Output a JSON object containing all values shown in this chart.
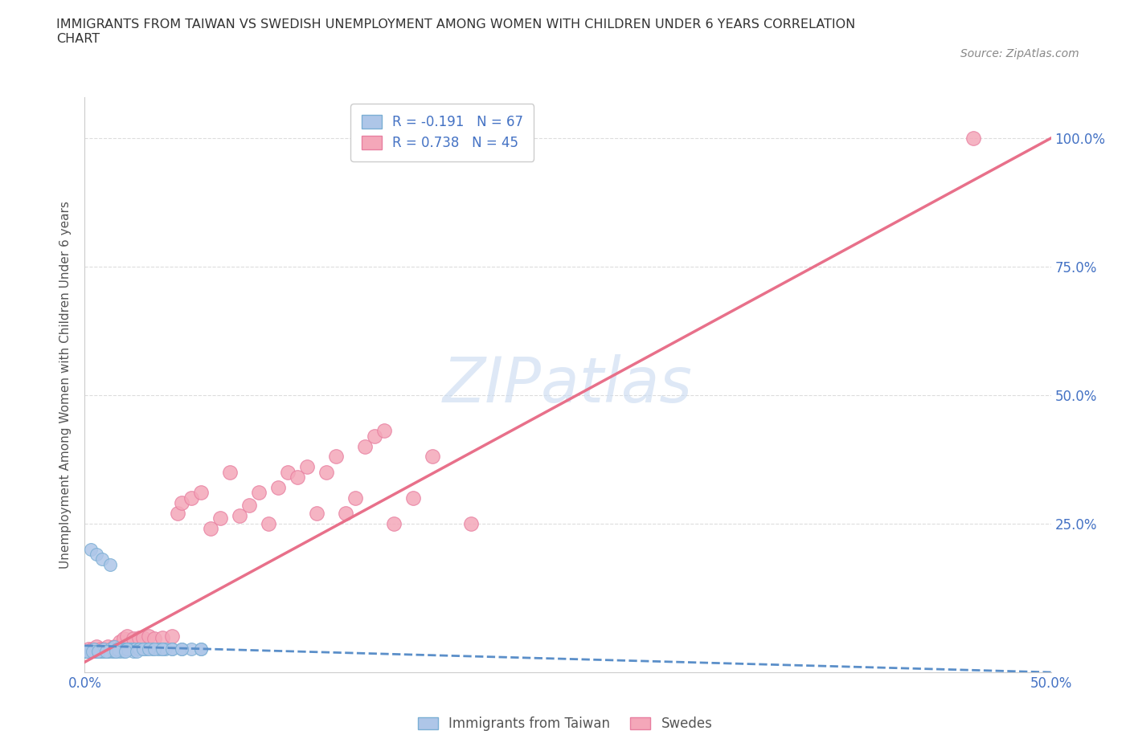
{
  "title": "IMMIGRANTS FROM TAIWAN VS SWEDISH UNEMPLOYMENT AMONG WOMEN WITH CHILDREN UNDER 6 YEARS CORRELATION\nCHART",
  "source": "Source: ZipAtlas.com",
  "ylabel_left": "Unemployment Among Women with Children Under 6 years",
  "x_min": 0.0,
  "x_max": 0.5,
  "y_min": -0.04,
  "y_max": 1.08,
  "grid_color": "#dddddd",
  "background_color": "#ffffff",
  "taiwan_color": "#aec6e8",
  "taiwan_edge_color": "#7bafd4",
  "swedes_color": "#f4a7b9",
  "swedes_edge_color": "#e87fa0",
  "taiwan_line_color": "#5b8fc9",
  "swedes_line_color": "#e8708a",
  "legend_taiwan_label": "R = -0.191   N = 67",
  "legend_swedes_label": "R = 0.738   N = 45",
  "legend_taiwan_color": "#aec6e8",
  "legend_swedes_color": "#f4a7b9",
  "watermark": "ZIPatlas",
  "watermark_color": "#c8daf0",
  "taiwan_scatter_x": [
    0.0,
    0.001,
    0.002,
    0.003,
    0.004,
    0.005,
    0.006,
    0.007,
    0.008,
    0.009,
    0.01,
    0.011,
    0.012,
    0.013,
    0.014,
    0.015,
    0.016,
    0.017,
    0.018,
    0.019,
    0.02,
    0.021,
    0.022,
    0.023,
    0.024,
    0.025,
    0.026,
    0.028,
    0.03,
    0.032,
    0.035,
    0.038,
    0.04,
    0.042,
    0.045,
    0.05,
    0.055,
    0.06,
    0.005,
    0.008,
    0.01,
    0.012,
    0.015,
    0.018,
    0.02,
    0.025,
    0.003,
    0.006,
    0.009,
    0.013,
    0.017,
    0.022,
    0.028,
    0.001,
    0.004,
    0.007,
    0.011,
    0.016,
    0.021,
    0.027,
    0.03,
    0.033,
    0.036,
    0.04,
    0.045,
    0.05,
    0.06
  ],
  "taiwan_scatter_y": [
    0.0,
    0.0,
    0.0,
    0.0,
    0.0,
    0.005,
    0.0,
    0.0,
    0.0,
    0.0,
    0.005,
    0.0,
    0.0,
    0.005,
    0.0,
    0.01,
    0.0,
    0.005,
    0.005,
    0.005,
    0.005,
    0.005,
    0.005,
    0.005,
    0.005,
    0.005,
    0.005,
    0.005,
    0.005,
    0.005,
    0.005,
    0.005,
    0.005,
    0.005,
    0.005,
    0.005,
    0.005,
    0.005,
    0.0,
    0.0,
    0.0,
    0.0,
    0.0,
    0.0,
    0.0,
    0.0,
    0.2,
    0.19,
    0.18,
    0.17,
    0.005,
    0.005,
    0.005,
    0.0,
    0.0,
    0.0,
    0.0,
    0.0,
    0.0,
    0.0,
    0.005,
    0.005,
    0.005,
    0.005,
    0.005,
    0.005,
    0.005
  ],
  "swedes_scatter_x": [
    0.002,
    0.004,
    0.006,
    0.008,
    0.01,
    0.012,
    0.015,
    0.018,
    0.02,
    0.022,
    0.025,
    0.028,
    0.03,
    0.033,
    0.036,
    0.04,
    0.045,
    0.048,
    0.05,
    0.055,
    0.06,
    0.065,
    0.07,
    0.075,
    0.08,
    0.085,
    0.09,
    0.095,
    0.1,
    0.105,
    0.11,
    0.115,
    0.12,
    0.125,
    0.13,
    0.135,
    0.14,
    0.145,
    0.15,
    0.155,
    0.16,
    0.17,
    0.18,
    0.2,
    0.46
  ],
  "swedes_scatter_y": [
    0.005,
    0.005,
    0.01,
    0.005,
    0.005,
    0.01,
    0.01,
    0.02,
    0.025,
    0.03,
    0.025,
    0.028,
    0.028,
    0.03,
    0.025,
    0.028,
    0.03,
    0.27,
    0.29,
    0.3,
    0.31,
    0.24,
    0.26,
    0.35,
    0.265,
    0.285,
    0.31,
    0.25,
    0.32,
    0.35,
    0.34,
    0.36,
    0.27,
    0.35,
    0.38,
    0.27,
    0.3,
    0.4,
    0.42,
    0.43,
    0.25,
    0.3,
    0.38,
    0.25,
    1.0
  ],
  "swedes_line_x0": 0.0,
  "swedes_line_y0": -0.02,
  "swedes_line_x1": 0.5,
  "swedes_line_y1": 1.0,
  "taiwan_line_x0": 0.0,
  "taiwan_line_y0": 0.012,
  "taiwan_line_x1": 0.5,
  "taiwan_line_y1": -0.04
}
